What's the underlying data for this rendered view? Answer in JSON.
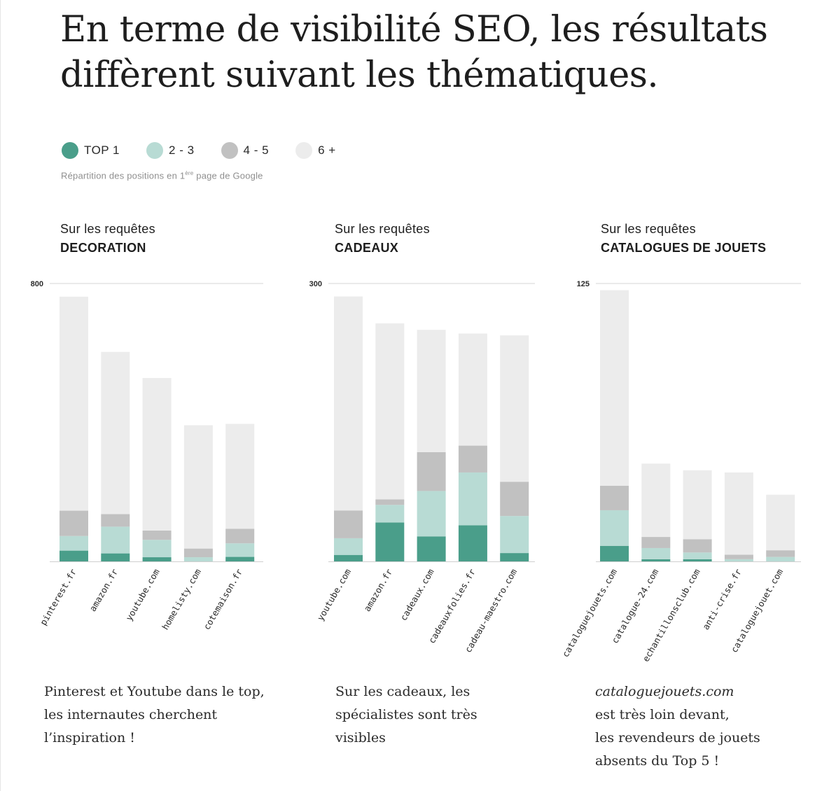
{
  "page": {
    "title": "En terme de visibilité SEO, les résultats diffèrent suivant les thématiques.",
    "caption_pre": "Répartition des positions en 1",
    "caption_sup": "ère",
    "caption_post": " page de Google"
  },
  "legend": [
    {
      "label": "TOP 1",
      "color": "#4a9e8a"
    },
    {
      "label": "2 - 3",
      "color": "#b8dbd4"
    },
    {
      "label": "4 - 5",
      "color": "#c1c1c1"
    },
    {
      "label": "6 +",
      "color": "#ececec"
    }
  ],
  "panels": [
    {
      "title_line1": "Sur les requêtes",
      "title_line2": "DECORATION"
    },
    {
      "title_line1": "Sur les requêtes",
      "title_line2": "CADEAUX"
    },
    {
      "title_line1": "Sur les requêtes",
      "title_line2": "CATALOGUES DE JOUETS"
    }
  ],
  "comments": [
    {
      "lines": [
        "Pinterest et Youtube dans le top,",
        "les internautes cherchent",
        "l’inspiration !"
      ]
    },
    {
      "lines": [
        "Sur les cadeaux, les",
        "spécialistes sont très",
        "visibles"
      ]
    },
    {
      "lines_em": [
        "cataloguejouets.com"
      ],
      "lines": [
        "est très loin devant,",
        "les revendeurs de jouets",
        "absents du Top 5 !"
      ]
    }
  ],
  "chart_data": [
    {
      "type": "bar",
      "stacked": true,
      "title": "Sur les requêtes DECORATION",
      "ylim": [
        0,
        800
      ],
      "y_ticks": [
        800
      ],
      "grid": false,
      "categories": [
        "pinterest.fr",
        "amazon.fr",
        "youtube.com",
        "homelisty.com",
        "cotemaison.fr"
      ],
      "series": [
        {
          "name": "TOP 1",
          "values": [
            31,
            23,
            12,
            0,
            13
          ]
        },
        {
          "name": "2 - 3",
          "values": [
            42,
            77,
            50,
            12,
            39
          ]
        },
        {
          "name": "4 - 5",
          "values": [
            73,
            36,
            27,
            25,
            42
          ]
        },
        {
          "name": "6 +",
          "values": [
            616,
            467,
            439,
            355,
            302
          ]
        }
      ]
    },
    {
      "type": "bar",
      "stacked": true,
      "title": "Sur les requêtes CADEAUX",
      "ylim": [
        0,
        300
      ],
      "y_ticks": [
        300
      ],
      "grid": false,
      "categories": [
        "youtube.com",
        "amazon.fr",
        "cadeaux.com",
        "cadeauxfolies.fr",
        "cadeau-maestro.com"
      ],
      "series": [
        {
          "name": "TOP 1",
          "values": [
            7,
            42,
            27,
            39,
            9
          ]
        },
        {
          "name": "2 - 3",
          "values": [
            18,
            19,
            49,
            57,
            40
          ]
        },
        {
          "name": "4 - 5",
          "values": [
            30,
            6,
            42,
            29,
            37
          ]
        },
        {
          "name": "6 +",
          "values": [
            231,
            190,
            132,
            121,
            158
          ]
        }
      ]
    },
    {
      "type": "bar",
      "stacked": true,
      "title": "Sur les requêtes CATALOGUES DE JOUETS",
      "ylim": [
        0,
        125
      ],
      "y_ticks": [
        125
      ],
      "grid": false,
      "categories": [
        "cataloguejouets.com",
        "catalogue-24.com",
        "echantillonsclub.com",
        "anti-crise.fr",
        "cataloguejouet.com"
      ],
      "series": [
        {
          "name": "TOP 1",
          "values": [
            7,
            1,
            1,
            0,
            0
          ]
        },
        {
          "name": "2 - 3",
          "values": [
            16,
            5,
            3,
            1,
            2
          ]
        },
        {
          "name": "4 - 5",
          "values": [
            11,
            5,
            6,
            2,
            3
          ]
        },
        {
          "name": "6 +",
          "values": [
            88,
            33,
            31,
            37,
            25
          ]
        }
      ]
    }
  ]
}
